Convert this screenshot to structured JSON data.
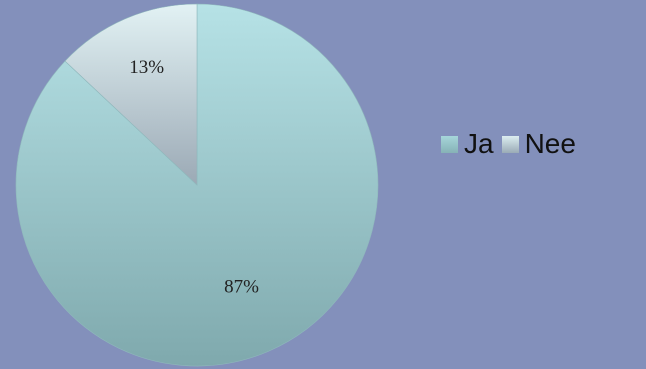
{
  "chart_data": {
    "type": "pie",
    "slices": [
      {
        "label": "Ja",
        "value": 87,
        "data_label": "87%",
        "color": "#a6d6da",
        "color_dark": "#86b2b6"
      },
      {
        "label": "Nee",
        "value": 13,
        "data_label": "13%",
        "color": "#dcedf0",
        "color_dark": "#9aabb6"
      }
    ],
    "legend_position": "right"
  }
}
